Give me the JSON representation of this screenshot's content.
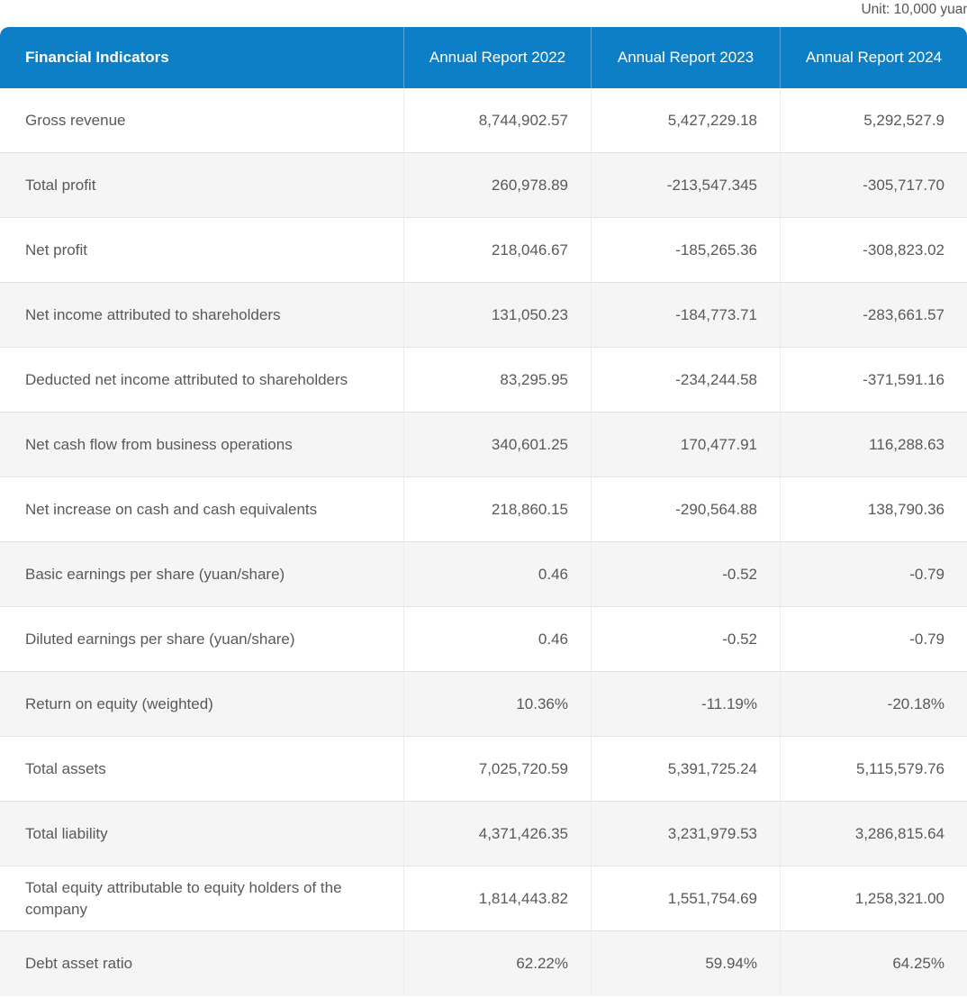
{
  "unit_note": "Unit: 10,000 yuan",
  "colors": {
    "header_bg": "#0d7fc6",
    "header_text": "#ffffff",
    "body_text": "#58595b",
    "alt_row_bg": "#f5f5f6"
  },
  "table": {
    "columns": [
      {
        "label": "Financial Indicators"
      },
      {
        "label": "Annual Report 2022"
      },
      {
        "label": "Annual Report 2023"
      },
      {
        "label": "Annual Report 2024"
      }
    ],
    "rows": [
      {
        "label": "Gross revenue",
        "values": [
          "8,744,902.57",
          "5,427,229.18",
          "5,292,527.9"
        ]
      },
      {
        "label": "Total profit",
        "values": [
          "260,978.89",
          "-213,547.345",
          "-305,717.70"
        ]
      },
      {
        "label": "Net profit",
        "values": [
          "218,046.67",
          "-185,265.36",
          "-308,823.02"
        ]
      },
      {
        "label": "Net income attributed to shareholders",
        "values": [
          "131,050.23",
          "-184,773.71",
          "-283,661.57"
        ]
      },
      {
        "label": "Deducted net income attributed to shareholders",
        "values": [
          "83,295.95",
          "-234,244.58",
          "-371,591.16"
        ]
      },
      {
        "label": "Net cash flow from business operations",
        "values": [
          "340,601.25",
          "170,477.91",
          "116,288.63"
        ]
      },
      {
        "label": "Net increase on cash and cash equivalents",
        "values": [
          "218,860.15",
          "-290,564.88",
          "138,790.36"
        ]
      },
      {
        "label": "Basic earnings per share (yuan/share)",
        "values": [
          "0.46",
          "-0.52",
          "-0.79"
        ]
      },
      {
        "label": "Diluted earnings per share (yuan/share)",
        "values": [
          "0.46",
          "-0.52",
          "-0.79"
        ]
      },
      {
        "label": "Return on equity (weighted)",
        "values": [
          "10.36%",
          "-11.19%",
          "-20.18%"
        ]
      },
      {
        "label": "Total assets",
        "values": [
          "7,025,720.59",
          "5,391,725.24",
          "5,115,579.76"
        ]
      },
      {
        "label": "Total liability",
        "values": [
          "4,371,426.35",
          "3,231,979.53",
          "3,286,815.64"
        ]
      },
      {
        "label": "Total equity attributable to equity holders of the company",
        "values": [
          "1,814,443.82",
          "1,551,754.69",
          "1,258,321.00"
        ]
      },
      {
        "label": "Debt asset ratio",
        "values": [
          "62.22%",
          "59.94%",
          "64.25%"
        ]
      }
    ]
  }
}
